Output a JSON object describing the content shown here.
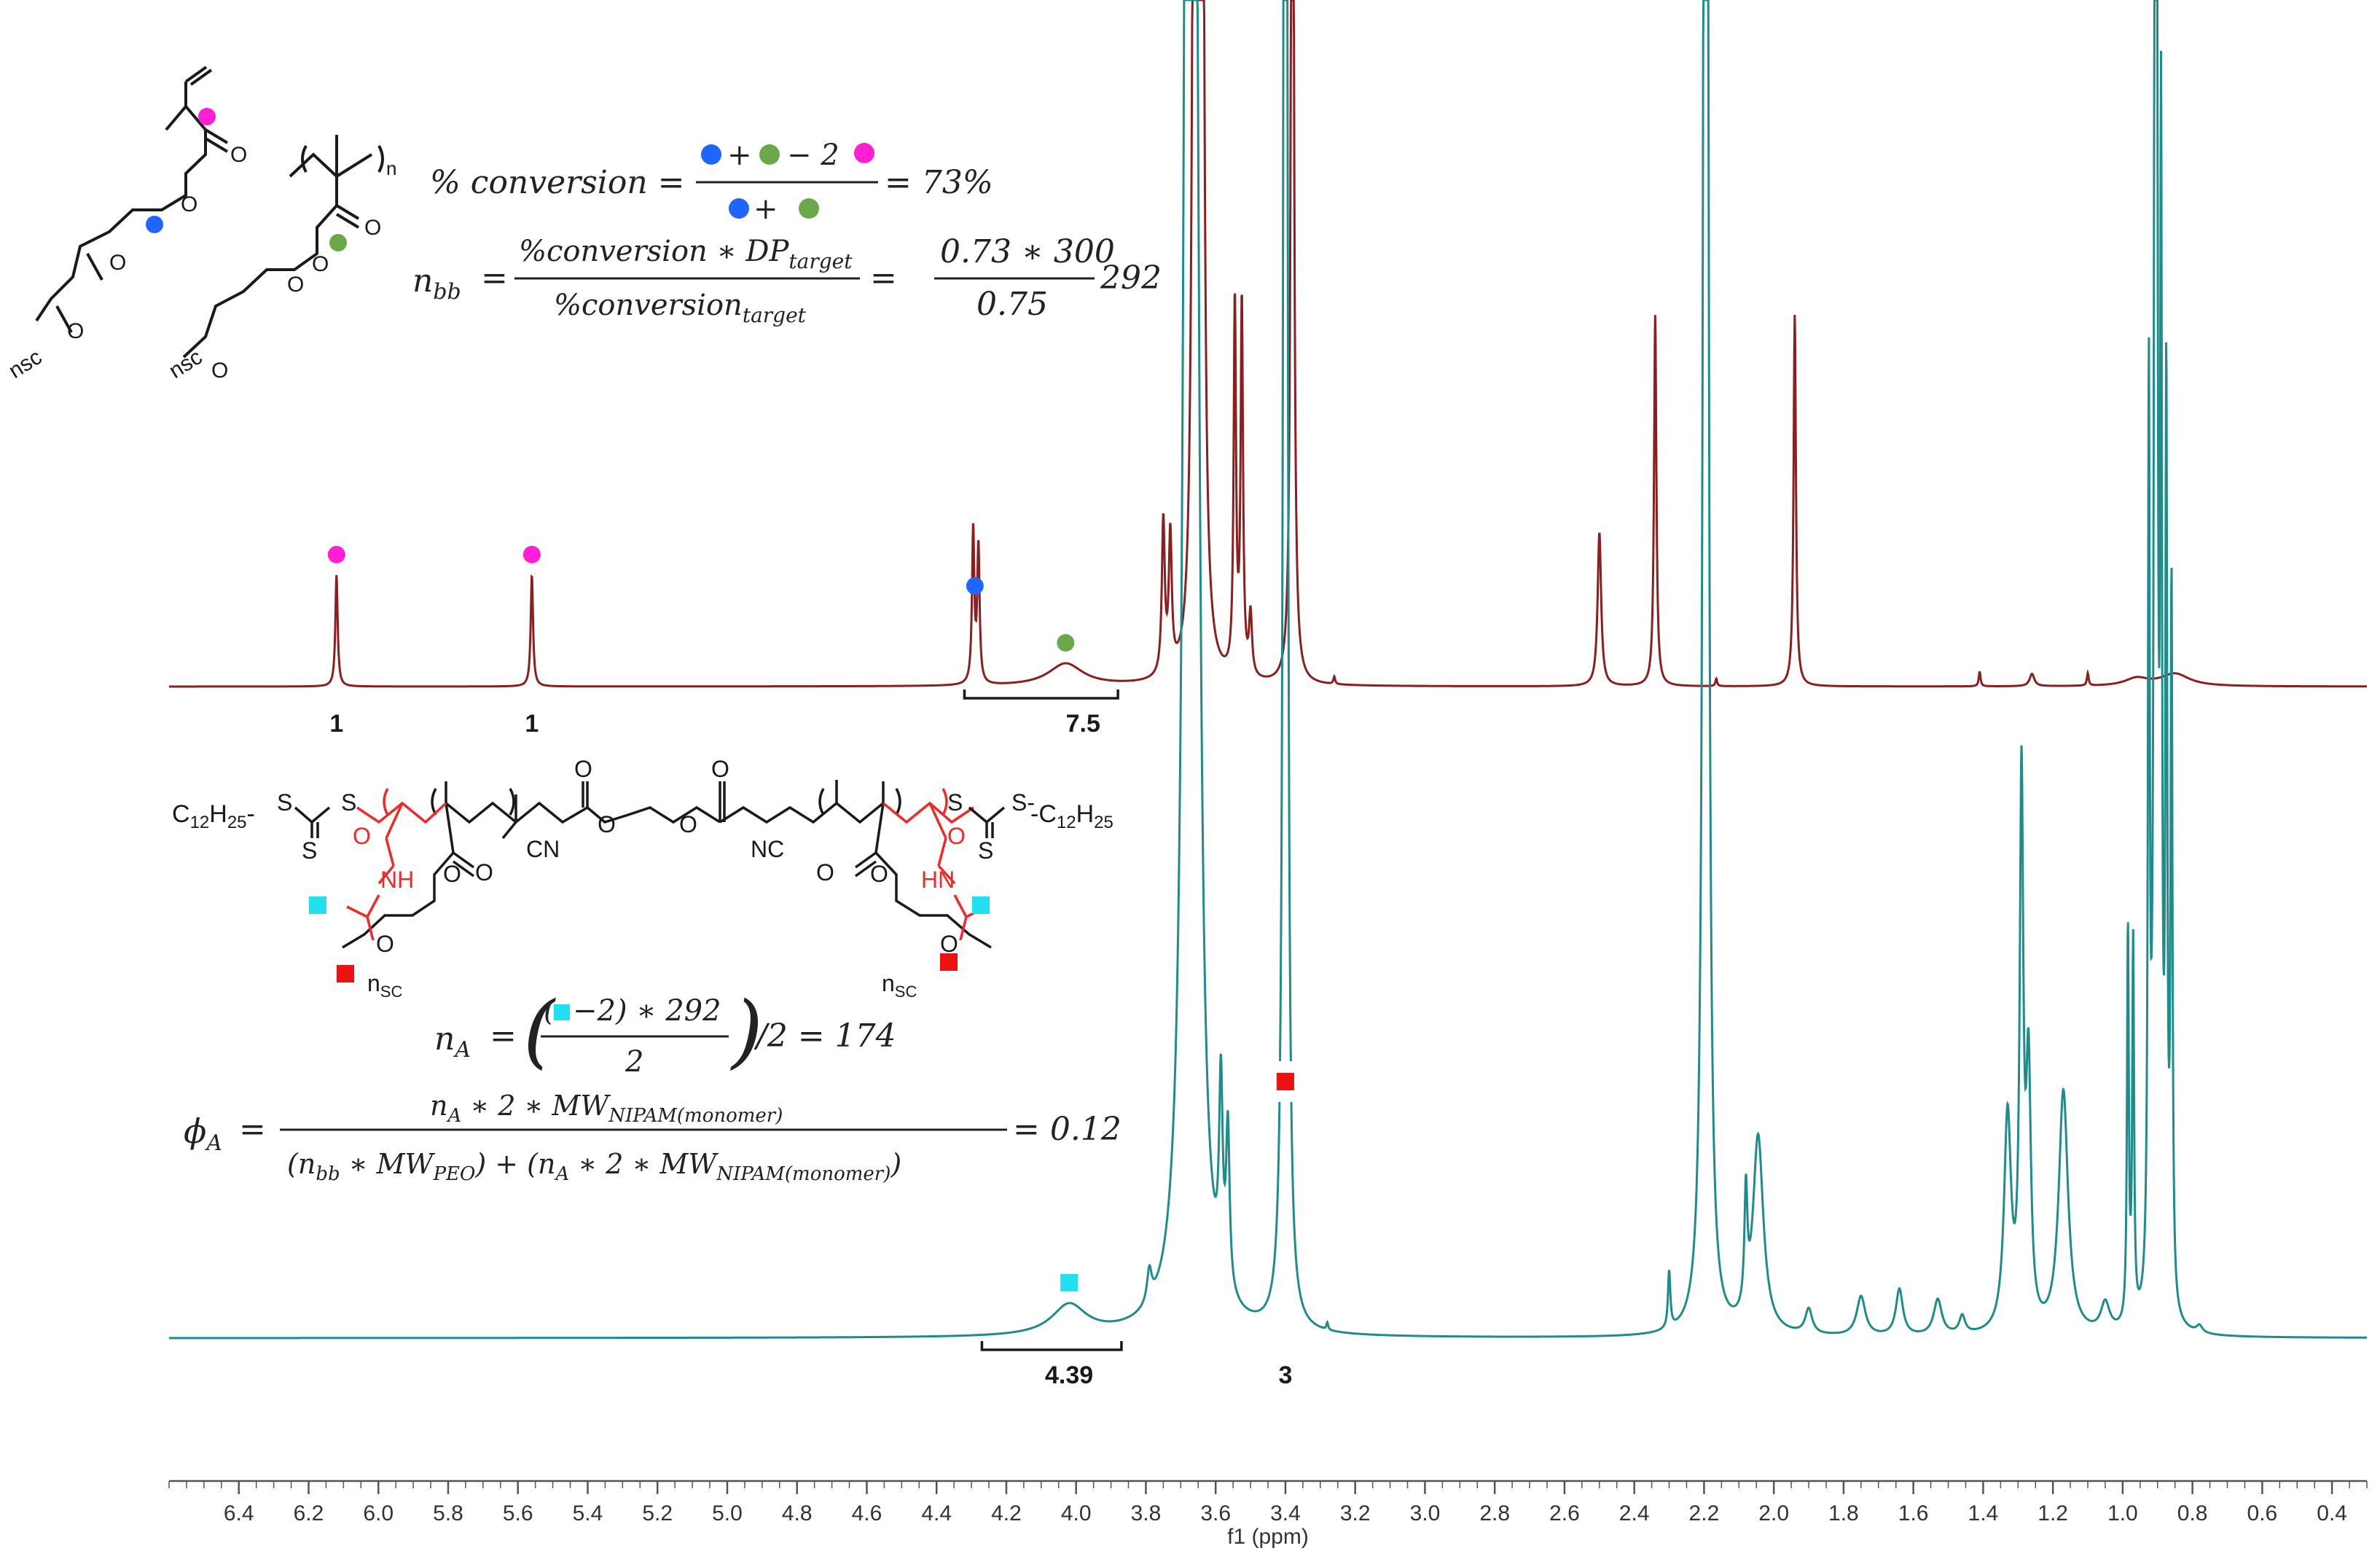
{
  "chart_data": {
    "type": "line",
    "title": "",
    "xlabel": "f1 (ppm)",
    "ylabel": "",
    "xlim": [
      6.6,
      0.3
    ],
    "x_reversed": true,
    "x_ticks": [
      6.4,
      6.2,
      6.0,
      5.8,
      5.6,
      5.4,
      5.2,
      5.0,
      4.8,
      4.6,
      4.4,
      4.2,
      4.0,
      3.8,
      3.6,
      3.4,
      3.2,
      3.0,
      2.8,
      2.6,
      2.4,
      2.2,
      2.0,
      1.8,
      1.6,
      1.4,
      1.2,
      1.0,
      0.8,
      0.6,
      0.4
    ],
    "x_tick_labels": [
      "6.4",
      "6.2",
      "6.0",
      "5.8",
      "5.6",
      "5.4",
      "5.2",
      "5.0",
      "4.8",
      "4.6",
      "4.4",
      "4.2",
      "4.0",
      "3.8",
      "3.6",
      "3.4",
      "3.2",
      "3.0",
      "2.8",
      "2.6",
      "2.4",
      "2.2",
      "2.0",
      "1.8",
      "1.6",
      "1.4",
      "1.2",
      "1.0",
      "0.8",
      "0.6",
      "0.4"
    ],
    "grid": false,
    "series": [
      {
        "color": "#8b1e1e",
        "peaks": [
          {
            "x": 6.12,
            "h": 0.45,
            "w": 0.004
          },
          {
            "x": 5.56,
            "h": 0.45,
            "w": 0.004
          },
          {
            "x": 4.295,
            "h": 0.62,
            "w": 0.004
          },
          {
            "x": 4.28,
            "h": 0.55,
            "w": 0.004
          },
          {
            "x": 4.03,
            "h": 0.09,
            "w": 0.06
          },
          {
            "x": 3.75,
            "h": 0.62,
            "w": 0.005
          },
          {
            "x": 3.73,
            "h": 0.55,
            "w": 0.005
          },
          {
            "x": 3.66,
            "h": 6.0,
            "w": 0.006
          },
          {
            "x": 3.64,
            "h": 6.0,
            "w": 0.006
          },
          {
            "x": 3.545,
            "h": 1.5,
            "w": 0.004
          },
          {
            "x": 3.525,
            "h": 1.5,
            "w": 0.004
          },
          {
            "x": 3.5,
            "h": 0.25,
            "w": 0.005
          },
          {
            "x": 3.38,
            "h": 6.0,
            "w": 0.004
          },
          {
            "x": 3.26,
            "h": 0.03,
            "w": 0.003
          },
          {
            "x": 2.5,
            "h": 0.62,
            "w": 0.006
          },
          {
            "x": 2.34,
            "h": 1.5,
            "w": 0.004
          },
          {
            "x": 2.165,
            "h": 0.03,
            "w": 0.003
          },
          {
            "x": 1.94,
            "h": 1.5,
            "w": 0.004
          },
          {
            "x": 1.41,
            "h": 0.06,
            "w": 0.003
          },
          {
            "x": 1.26,
            "h": 0.05,
            "w": 0.008
          },
          {
            "x": 1.1,
            "h": 0.05,
            "w": 0.003
          },
          {
            "x": 0.96,
            "h": 0.03,
            "w": 0.04
          },
          {
            "x": 0.85,
            "h": 0.05,
            "w": 0.05
          }
        ]
      },
      {
        "color": "#1f8c8c",
        "peaks": [
          {
            "x": 4.02,
            "h": 0.085,
            "w": 0.06
          },
          {
            "x": 3.79,
            "h": 0.09,
            "w": 0.008
          },
          {
            "x": 3.675,
            "h": 12.0,
            "w": 0.01
          },
          {
            "x": 3.655,
            "h": 2.0,
            "w": 0.012
          },
          {
            "x": 3.585,
            "h": 0.55,
            "w": 0.006
          },
          {
            "x": 3.565,
            "h": 0.45,
            "w": 0.006
          },
          {
            "x": 3.4,
            "h": 12.0,
            "w": 0.004
          },
          {
            "x": 3.28,
            "h": 0.02,
            "w": 0.003
          },
          {
            "x": 2.3,
            "h": 0.16,
            "w": 0.004
          },
          {
            "x": 2.195,
            "h": 12.0,
            "w": 0.005
          },
          {
            "x": 2.08,
            "h": 0.32,
            "w": 0.005
          },
          {
            "x": 2.045,
            "h": 0.55,
            "w": 0.018
          },
          {
            "x": 1.9,
            "h": 0.07,
            "w": 0.012
          },
          {
            "x": 1.75,
            "h": 0.11,
            "w": 0.015
          },
          {
            "x": 1.64,
            "h": 0.13,
            "w": 0.012
          },
          {
            "x": 1.53,
            "h": 0.1,
            "w": 0.014
          },
          {
            "x": 1.46,
            "h": 0.05,
            "w": 0.01
          },
          {
            "x": 1.33,
            "h": 0.6,
            "w": 0.012
          },
          {
            "x": 1.29,
            "h": 1.5,
            "w": 0.006
          },
          {
            "x": 1.27,
            "h": 0.7,
            "w": 0.008
          },
          {
            "x": 1.17,
            "h": 0.68,
            "w": 0.016
          },
          {
            "x": 1.05,
            "h": 0.08,
            "w": 0.015
          },
          {
            "x": 0.985,
            "h": 1.1,
            "w": 0.003
          },
          {
            "x": 0.97,
            "h": 1.05,
            "w": 0.003
          },
          {
            "x": 0.925,
            "h": 2.5,
            "w": 0.003
          },
          {
            "x": 0.905,
            "h": 12.0,
            "w": 0.003
          },
          {
            "x": 0.89,
            "h": 3.0,
            "w": 0.003
          },
          {
            "x": 0.875,
            "h": 2.5,
            "w": 0.003
          },
          {
            "x": 0.86,
            "h": 2.0,
            "w": 0.003
          },
          {
            "x": 0.78,
            "h": 0.02,
            "w": 0.01
          }
        ]
      }
    ],
    "integrals": [
      {
        "series": 0,
        "text": "1",
        "x": 6.12,
        "from": null,
        "to": null
      },
      {
        "series": 0,
        "text": "1",
        "x": 5.56,
        "from": null,
        "to": null
      },
      {
        "series": 0,
        "text": "7.5",
        "x": 3.98,
        "from": 4.32,
        "to": 3.88
      },
      {
        "series": 1,
        "text": "4.39",
        "x": 4.02,
        "from": 4.27,
        "to": 3.87
      },
      {
        "series": 1,
        "text": "3",
        "x": 3.4,
        "from": null,
        "to": null
      }
    ],
    "markers": [
      {
        "series": 0,
        "x": 6.12,
        "shape": "circle",
        "color": "#ff1fd6"
      },
      {
        "series": 0,
        "x": 5.56,
        "shape": "circle",
        "color": "#ff1fd6"
      },
      {
        "series": 0,
        "x": 4.29,
        "shape": "circle",
        "color": "#1e66ff"
      },
      {
        "series": 0,
        "x": 4.03,
        "shape": "circle",
        "color": "#6ca84a"
      },
      {
        "series": 1,
        "x": 4.02,
        "shape": "square",
        "color": "#22e0f0"
      },
      {
        "series": 1,
        "x": 3.4,
        "shape": "square",
        "color": "#ee1111"
      }
    ],
    "annotations": {
      "conversion": {
        "lhs": "% conversion =",
        "num_minus": "− 2",
        "result": "= 73%"
      },
      "nbb": {
        "lhs": "n",
        "lhs_sub": "bb",
        "eq": "=",
        "num": "%conversion ∗ DP",
        "num_sub": "target",
        "den": "%conversion",
        "den_sub": "target",
        "eq2": "=",
        "num2": "0.73 ∗ 300",
        "den2": "0.75",
        "result": "292"
      },
      "nA": {
        "lhs": "n",
        "lhs_sub": "A",
        "eq": "=",
        "num_rest": "−2) ∗ 292",
        "den": "2",
        "tail": "/2 = 174"
      },
      "phi": {
        "lhs": "ϕ",
        "lhs_sub": "A",
        "eq": "=",
        "num": "n",
        "num_sub": "A",
        "num_rest": " ∗ 2 ∗ MW",
        "num_sub2": "NIPAM(monomer)",
        "den_a": "(n",
        "den_a_sub": "bb",
        "den_b": " ∗ MW",
        "den_b_sub": "PEO",
        "den_c": ") + (n",
        "den_c_sub": "A",
        "den_d": " ∗ 2 ∗ MW",
        "den_d_sub": "NIPAM(monomer)",
        "den_e": ")",
        "result": "= 0.12"
      }
    },
    "structure_labels": {
      "nsc": "nsc",
      "n": "n",
      "O": "O",
      "S": "S",
      "S_dash": "S-",
      "C12H25_left": "C",
      "C12H25_left_sub1": "12",
      "C12H25_left_H": "H",
      "C12H25_left_sub2": "25",
      "C12H25_right": "-C",
      "C12H25_right_sub1": "12",
      "C12H25_right_H": "H",
      "C12H25_right_sub2": "25",
      "CN": "CN",
      "NC": "NC",
      "NH": "NH",
      "HN": "HN",
      "n_sc": "n",
      "n_sc_sub": "SC"
    }
  }
}
